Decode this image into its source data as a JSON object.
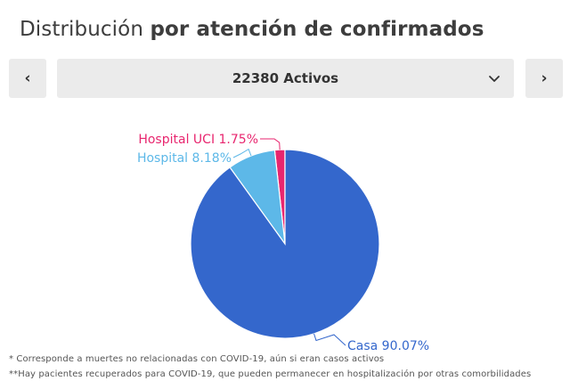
{
  "header": {
    "title_regular": "Distribución",
    "title_bold": "por atención de confirmados"
  },
  "nav": {
    "prev_glyph": "‹",
    "next_glyph": "›",
    "prev_icon": "chevron-left-icon",
    "next_icon": "chevron-right-icon"
  },
  "selector": {
    "selected": "22380 Activos",
    "icon": "chevron-down-icon"
  },
  "chart_data": {
    "type": "pie",
    "slices": [
      {
        "label": "Hospital UCI 1.75%",
        "value": 1.75,
        "color": "#e8266f"
      },
      {
        "label": "Hospital 8.18%",
        "value": 8.18,
        "color": "#5db8e8"
      },
      {
        "label": "Casa 90.07%",
        "value": 90.07,
        "color": "#3467cc"
      }
    ],
    "slice_order": "counterclockwise from top",
    "legend": "none"
  },
  "footnotes": [
    "* Corresponde a muertes no relacionadas con COVID-19, aún si eran casos activos",
    "**Hay pacientes recuperados para COVID-19, que pueden permanecer en hospitalización por otras comorbilidades"
  ]
}
